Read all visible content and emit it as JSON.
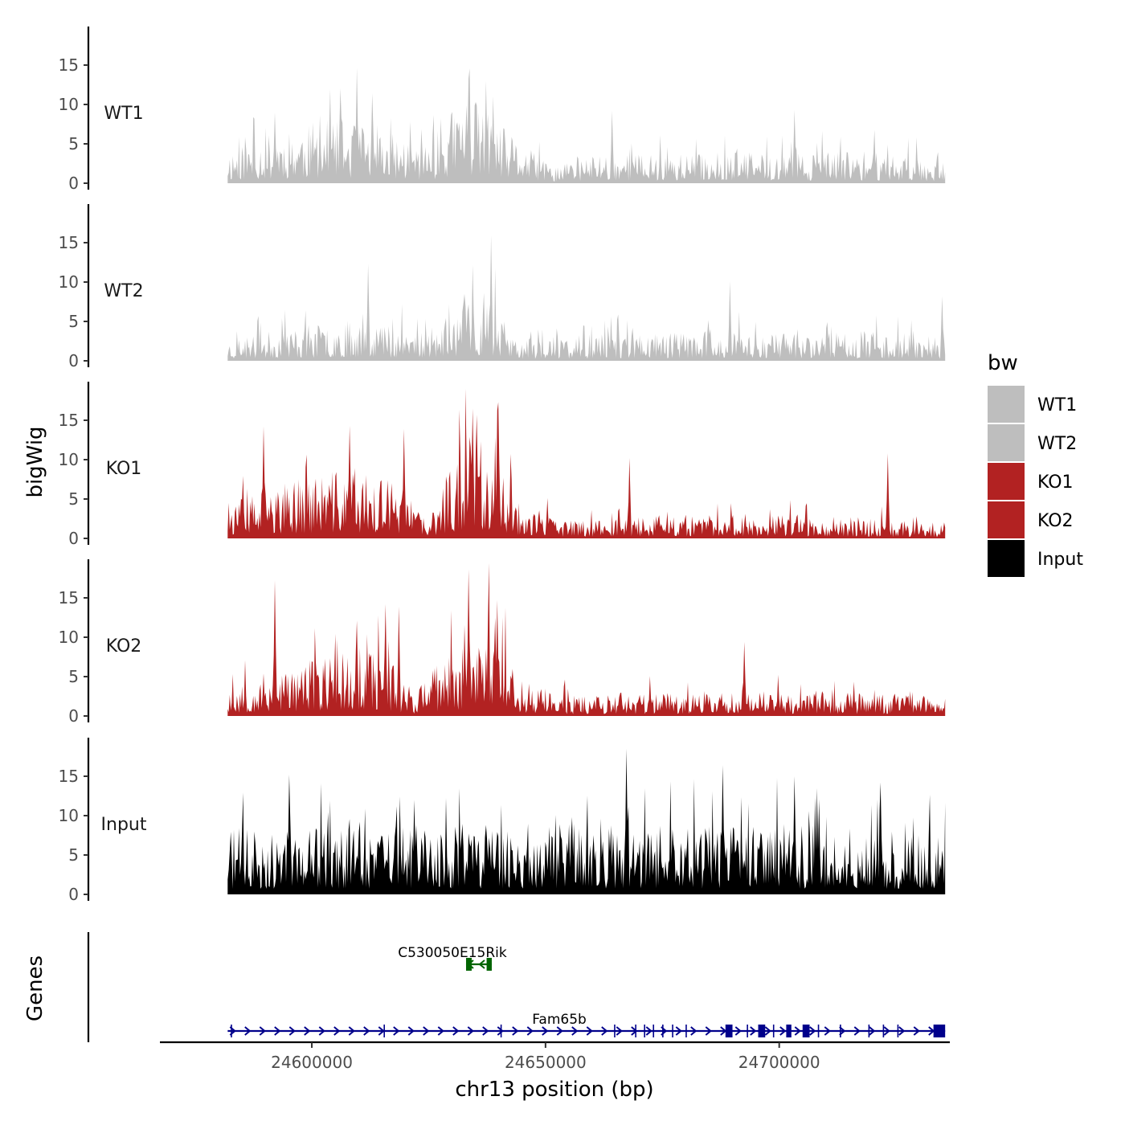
{
  "chart_data": {
    "type": "area",
    "subtype": "genome-track",
    "xlabel": "chr13 position (bp)",
    "ylabel": "bigWig",
    "genes_axis_label": "Genes",
    "x_range": [
      24567500,
      24736500
    ],
    "data_x_range": [
      24582000,
      24735500
    ],
    "x_ticks": [
      24600000,
      24650000,
      24700000
    ],
    "x_tick_labels": [
      "24600000",
      "24650000",
      "24700000"
    ],
    "y_range": [
      0,
      20
    ],
    "y_ticks": [
      0,
      5,
      10,
      15
    ],
    "y_tick_labels": [
      "0",
      "5",
      "10",
      "15"
    ],
    "tracks": [
      {
        "name": "WT1",
        "color": "#BEBEBE",
        "seed": 11,
        "profile": [
          [
            0,
            2.4
          ],
          [
            0.07,
            3.6
          ],
          [
            0.15,
            4.6
          ],
          [
            0.22,
            3.6
          ],
          [
            0.28,
            2.6
          ],
          [
            0.33,
            6.5
          ],
          [
            0.38,
            4.0
          ],
          [
            0.45,
            1.2
          ],
          [
            0.52,
            2.2
          ],
          [
            0.6,
            2.0
          ],
          [
            0.7,
            2.2
          ],
          [
            0.8,
            2.1
          ],
          [
            0.9,
            2.2
          ],
          [
            1,
            1.8
          ]
        ],
        "peaks": [
          [
            0.065,
            9.0
          ],
          [
            0.18,
            14.7
          ],
          [
            0.335,
            13.3
          ],
          [
            0.36,
            13.0
          ],
          [
            0.79,
            9.3
          ],
          [
            0.535,
            9.2
          ]
        ]
      },
      {
        "name": "WT2",
        "color": "#BEBEBE",
        "seed": 23,
        "profile": [
          [
            0,
            1.5
          ],
          [
            0.1,
            2.4
          ],
          [
            0.2,
            3.0
          ],
          [
            0.28,
            2.0
          ],
          [
            0.33,
            4.0
          ],
          [
            0.37,
            4.2
          ],
          [
            0.4,
            1.5
          ],
          [
            0.5,
            1.8
          ],
          [
            0.6,
            2.1
          ],
          [
            0.75,
            2.0
          ],
          [
            0.9,
            2.1
          ],
          [
            1,
            1.6
          ]
        ],
        "peaks": [
          [
            0.367,
            15.9
          ],
          [
            0.195,
            12.3
          ],
          [
            0.7,
            10.1
          ],
          [
            0.33,
            8.5
          ],
          [
            0.995,
            8.2
          ]
        ]
      },
      {
        "name": "KO1",
        "color": "#B22222",
        "seed": 37,
        "profile": [
          [
            0,
            2.4
          ],
          [
            0.08,
            3.8
          ],
          [
            0.15,
            4.8
          ],
          [
            0.22,
            4.2
          ],
          [
            0.26,
            2.5
          ],
          [
            0.28,
            1.0
          ],
          [
            0.3,
            4.0
          ],
          [
            0.34,
            8.0
          ],
          [
            0.37,
            6.5
          ],
          [
            0.4,
            2.8
          ],
          [
            0.46,
            1.3
          ],
          [
            0.6,
            1.6
          ],
          [
            0.75,
            1.7
          ],
          [
            0.85,
            1.6
          ],
          [
            1,
            1.0
          ]
        ],
        "peaks": [
          [
            0.377,
            17.3
          ],
          [
            0.347,
            15.7
          ],
          [
            0.17,
            14.3
          ],
          [
            0.245,
            13.9
          ],
          [
            0.05,
            14.2
          ],
          [
            0.92,
            10.8
          ],
          [
            0.56,
            10.2
          ]
        ]
      },
      {
        "name": "KO2",
        "color": "#B22222",
        "seed": 53,
        "profile": [
          [
            0,
            2.2
          ],
          [
            0.08,
            3.4
          ],
          [
            0.18,
            5.0
          ],
          [
            0.22,
            4.4
          ],
          [
            0.26,
            2.0
          ],
          [
            0.32,
            5.0
          ],
          [
            0.36,
            7.5
          ],
          [
            0.4,
            3.0
          ],
          [
            0.46,
            1.5
          ],
          [
            0.6,
            1.7
          ],
          [
            0.75,
            1.8
          ],
          [
            0.85,
            1.7
          ],
          [
            1,
            1.4
          ]
        ],
        "peaks": [
          [
            0.335,
            18.6
          ],
          [
            0.065,
            17.2
          ],
          [
            0.375,
            14.7
          ],
          [
            0.238,
            13.9
          ],
          [
            0.22,
            14.2
          ],
          [
            0.18,
            12.1
          ],
          [
            0.72,
            9.4
          ]
        ]
      },
      {
        "name": "Input",
        "color": "#000000",
        "seed": 71,
        "profile": [
          [
            0,
            4.6
          ],
          [
            0.2,
            4.8
          ],
          [
            0.4,
            4.9
          ],
          [
            0.6,
            4.8
          ],
          [
            0.8,
            4.9
          ],
          [
            1,
            4.2
          ]
        ],
        "peaks": [
          [
            0.555,
            18.5
          ],
          [
            0.69,
            16.4
          ],
          [
            0.085,
            15.2
          ],
          [
            0.79,
            15.0
          ],
          [
            0.91,
            14.2
          ],
          [
            0.26,
            12.0
          ]
        ]
      }
    ],
    "genes": [
      {
        "name": "C530050E15Rik",
        "color": "#006400",
        "strand": "-",
        "start": 24633000,
        "end": 24638500,
        "exons": [
          [
            24633000,
            24634200
          ],
          [
            24637400,
            24638500
          ]
        ]
      },
      {
        "name": "Fam65b",
        "color": "#00008B",
        "strand": "+",
        "start": 24582000,
        "end": 24735500,
        "exons": [
          [
            24688500,
            24690000
          ],
          [
            24695500,
            24697000
          ],
          [
            24701500,
            24702600
          ],
          [
            24705000,
            24706500
          ],
          [
            24733000,
            24735500
          ]
        ],
        "thin_exons": [
          24582800,
          24615500,
          24640500,
          24664800,
          24669300,
          24671200,
          24673100,
          24675100,
          24677200,
          24680100,
          24693200,
          24698800,
          24708400,
          24713100,
          24719200,
          24722300,
          24725400
        ]
      }
    ],
    "legend": {
      "title": "bw",
      "position": "right",
      "entries": [
        {
          "label": "WT1",
          "color": "#BEBEBE"
        },
        {
          "label": "WT2",
          "color": "#BEBEBE"
        },
        {
          "label": "KO1",
          "color": "#B22222"
        },
        {
          "label": "KO2",
          "color": "#B22222"
        },
        {
          "label": "Input",
          "color": "#000000"
        }
      ]
    }
  }
}
